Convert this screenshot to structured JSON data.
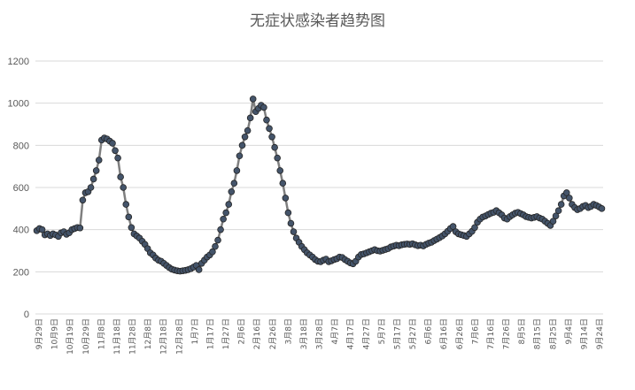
{
  "chart_data": {
    "type": "line",
    "title": "无症状感染者趋势图",
    "xlabel": "",
    "ylabel": "",
    "ylim": [
      0,
      1200
    ],
    "yticks": [
      0,
      200,
      400,
      600,
      800,
      1000,
      1200
    ],
    "grid": true,
    "legend": "none",
    "colors": {
      "line": "#7f7f7f",
      "marker_fill": "#44546a",
      "marker_edge": "#262626",
      "grid": "#d9d9d9",
      "text": "#595959"
    },
    "x_tick_labels": [
      "9月29日",
      "10月9日",
      "10月19日",
      "10月29日",
      "11月8日",
      "11月18日",
      "11月28日",
      "12月8日",
      "12月18日",
      "12月28日",
      "1月7日",
      "1月17日",
      "1月27日",
      "2月6日",
      "2月16日",
      "2月26日",
      "3月8日",
      "3月18日",
      "3月28日",
      "4月7日",
      "4月17日",
      "4月27日",
      "5月7日",
      "5月17日",
      "5月27日",
      "6月6日",
      "6月16日",
      "6月26日",
      "7月6日",
      "7月16日",
      "7月26日",
      "8月5日",
      "8月15日",
      "8月25日",
      "9月4日",
      "9月14日",
      "9月24日"
    ],
    "values": [
      395,
      405,
      400,
      375,
      380,
      372,
      380,
      375,
      368,
      385,
      390,
      378,
      385,
      400,
      405,
      410,
      408,
      540,
      575,
      580,
      600,
      640,
      680,
      730,
      825,
      835,
      830,
      820,
      810,
      775,
      740,
      650,
      600,
      520,
      460,
      410,
      380,
      370,
      360,
      345,
      330,
      310,
      290,
      280,
      265,
      255,
      250,
      240,
      230,
      220,
      212,
      208,
      205,
      203,
      205,
      207,
      210,
      215,
      222,
      230,
      210,
      240,
      255,
      270,
      280,
      295,
      320,
      350,
      400,
      450,
      480,
      520,
      580,
      620,
      680,
      750,
      800,
      840,
      870,
      930,
      1020,
      960,
      975,
      990,
      980,
      920,
      880,
      840,
      790,
      740,
      680,
      620,
      550,
      480,
      430,
      390,
      360,
      340,
      320,
      305,
      290,
      280,
      270,
      258,
      250,
      248,
      255,
      260,
      248,
      252,
      258,
      262,
      270,
      268,
      258,
      250,
      242,
      238,
      250,
      270,
      282,
      285,
      290,
      295,
      300,
      305,
      300,
      298,
      302,
      306,
      310,
      318,
      322,
      326,
      324,
      328,
      330,
      332,
      330,
      333,
      328,
      324,
      326,
      323,
      330,
      336,
      340,
      348,
      355,
      362,
      370,
      380,
      392,
      405,
      415,
      390,
      380,
      376,
      372,
      368,
      380,
      392,
      410,
      435,
      450,
      460,
      465,
      472,
      478,
      482,
      490,
      480,
      470,
      455,
      450,
      462,
      470,
      478,
      482,
      476,
      470,
      462,
      458,
      455,
      458,
      462,
      455,
      450,
      440,
      430,
      420,
      440,
      465,
      490,
      520,
      560,
      575,
      550,
      520,
      505,
      495,
      500,
      510,
      515,
      505,
      510,
      520,
      515,
      508,
      500
    ]
  }
}
